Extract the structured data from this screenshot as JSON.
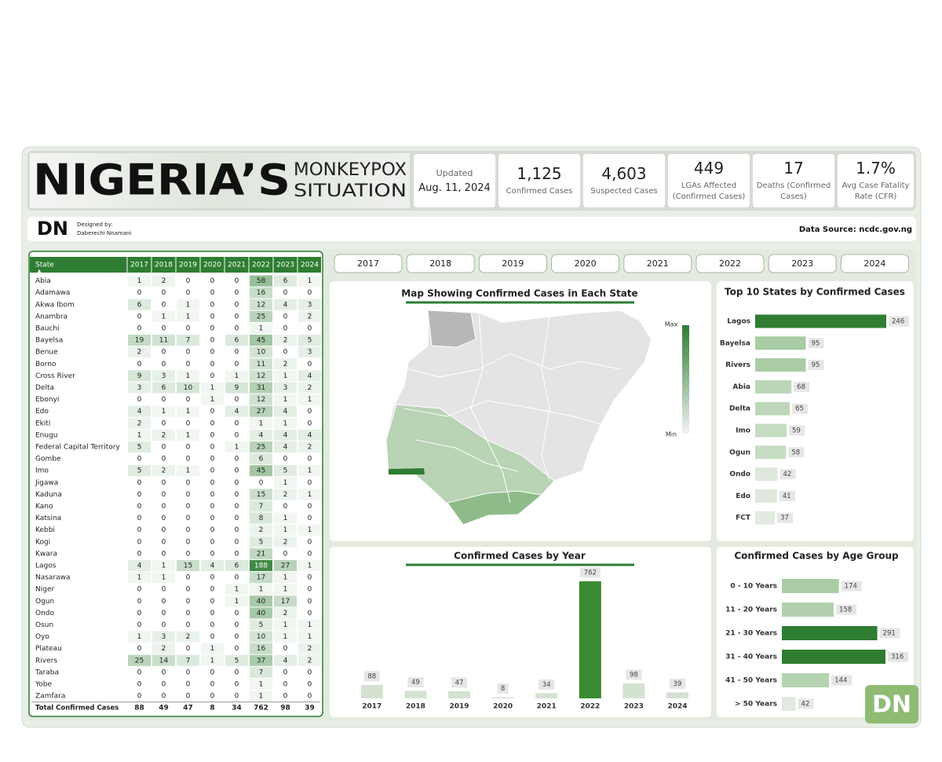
{
  "header": {
    "title": "NIGERIA’S",
    "subtitle_1": "MONKEYPOX",
    "subtitle_2": "SITUATION"
  },
  "updated": {
    "label": "Updated",
    "date": "Aug. 11, 2024"
  },
  "kpis": [
    {
      "value": "1,125",
      "label": "Confirmed Cases"
    },
    {
      "value": "4,603",
      "label": "Suspected Cases"
    },
    {
      "value": "449",
      "label": "LGAs Affected (Confirmed Cases)"
    },
    {
      "value": "17",
      "label": "Deaths (Confirmed Cases)"
    },
    {
      "value": "1.7%",
      "label": "Avg Case Fatality Rate (CFR)"
    }
  ],
  "credit": {
    "logo": "DN",
    "designed_by": "Designed by:",
    "designer": "Daberechi Nnamani",
    "source": "Data Source: ncdc.gov.ng"
  },
  "table": {
    "columns": [
      "State",
      "2017",
      "2018",
      "2019",
      "2020",
      "2021",
      "2022",
      "2023",
      "2024"
    ],
    "rows": [
      [
        "Abia",
        1,
        2,
        0,
        0,
        0,
        58,
        6,
        1
      ],
      [
        "Adamawa",
        0,
        0,
        0,
        0,
        0,
        16,
        0,
        0
      ],
      [
        "Akwa Ibom",
        6,
        0,
        1,
        0,
        0,
        12,
        4,
        3
      ],
      [
        "Anambra",
        0,
        1,
        1,
        0,
        0,
        25,
        0,
        2
      ],
      [
        "Bauchi",
        0,
        0,
        0,
        0,
        0,
        1,
        0,
        0
      ],
      [
        "Bayelsa",
        19,
        11,
        7,
        0,
        6,
        45,
        2,
        5
      ],
      [
        "Benue",
        2,
        0,
        0,
        0,
        0,
        10,
        0,
        3
      ],
      [
        "Borno",
        0,
        0,
        0,
        0,
        0,
        11,
        2,
        0
      ],
      [
        "Cross River",
        9,
        3,
        1,
        0,
        1,
        12,
        1,
        4
      ],
      [
        "Delta",
        3,
        6,
        10,
        1,
        9,
        31,
        3,
        2
      ],
      [
        "Ebonyi",
        0,
        0,
        0,
        1,
        0,
        12,
        1,
        1
      ],
      [
        "Edo",
        4,
        1,
        1,
        0,
        4,
        27,
        4,
        0
      ],
      [
        "Ekiti",
        2,
        0,
        0,
        0,
        0,
        1,
        1,
        0
      ],
      [
        "Enugu",
        1,
        2,
        1,
        0,
        0,
        4,
        4,
        4
      ],
      [
        "Federal Capital Territory",
        5,
        0,
        0,
        0,
        1,
        25,
        4,
        2
      ],
      [
        "Gombe",
        0,
        0,
        0,
        0,
        0,
        6,
        0,
        0
      ],
      [
        "Imo",
        5,
        2,
        1,
        0,
        0,
        45,
        5,
        1
      ],
      [
        "Jigawa",
        0,
        0,
        0,
        0,
        0,
        0,
        1,
        0
      ],
      [
        "Kaduna",
        0,
        0,
        0,
        0,
        0,
        15,
        2,
        1
      ],
      [
        "Kano",
        0,
        0,
        0,
        0,
        0,
        7,
        0,
        0
      ],
      [
        "Katsina",
        0,
        0,
        0,
        0,
        0,
        8,
        1,
        0
      ],
      [
        "Kebbi",
        0,
        0,
        0,
        0,
        0,
        2,
        1,
        1
      ],
      [
        "Kogi",
        0,
        0,
        0,
        0,
        0,
        5,
        2,
        0
      ],
      [
        "Kwara",
        0,
        0,
        0,
        0,
        0,
        21,
        0,
        0
      ],
      [
        "Lagos",
        4,
        1,
        15,
        4,
        6,
        188,
        27,
        1
      ],
      [
        "Nasarawa",
        1,
        1,
        0,
        0,
        0,
        17,
        1,
        0
      ],
      [
        "Niger",
        0,
        0,
        0,
        0,
        1,
        1,
        1,
        0
      ],
      [
        "Ogun",
        0,
        0,
        0,
        0,
        1,
        40,
        17,
        0
      ],
      [
        "Ondo",
        0,
        0,
        0,
        0,
        0,
        40,
        2,
        0
      ],
      [
        "Osun",
        0,
        0,
        0,
        0,
        0,
        5,
        1,
        1
      ],
      [
        "Oyo",
        1,
        3,
        2,
        0,
        0,
        10,
        1,
        1
      ],
      [
        "Plateau",
        0,
        2,
        0,
        1,
        0,
        16,
        0,
        2
      ],
      [
        "Rivers",
        25,
        14,
        7,
        1,
        5,
        37,
        4,
        2
      ],
      [
        "Taraba",
        0,
        0,
        0,
        0,
        0,
        7,
        0,
        0
      ],
      [
        "Yobe",
        0,
        0,
        0,
        0,
        0,
        1,
        0,
        0
      ],
      [
        "Zamfara",
        0,
        0,
        0,
        0,
        0,
        1,
        0,
        0
      ]
    ],
    "total": [
      "Total Confirmed Cases",
      88,
      49,
      47,
      8,
      34,
      762,
      98,
      39
    ]
  },
  "year_filters": [
    "2017",
    "2018",
    "2019",
    "2020",
    "2021",
    "2022",
    "2023",
    "2024"
  ],
  "map": {
    "title": "Map Showing Confirmed Cases in Each State",
    "legend_max": "Max",
    "legend_min": "Min"
  },
  "chart_data": [
    {
      "type": "hbar",
      "title": "Top 10 States by Confirmed Cases",
      "categories": [
        "Lagos",
        "Bayelsa",
        "Rivers",
        "Abia",
        "Delta",
        "Imo",
        "Ogun",
        "Ondo",
        "Edo",
        "FCT"
      ],
      "values": [
        246,
        95,
        95,
        68,
        65,
        59,
        58,
        42,
        41,
        37
      ],
      "colors": [
        "#2e7d32",
        "#a9cca5",
        "#a9cca5",
        "#bcd6b8",
        "#bed7ba",
        "#c6dcc2",
        "#c7ddc3",
        "#dfe8dd",
        "#e0e8de",
        "#e3eae1"
      ]
    },
    {
      "type": "bar",
      "title": "Confirmed Cases by Year",
      "categories": [
        "2017",
        "2018",
        "2019",
        "2020",
        "2021",
        "2022",
        "2023",
        "2024"
      ],
      "values": [
        88,
        49,
        47,
        8,
        34,
        762,
        98,
        39
      ],
      "colors": [
        "#d4e2d1",
        "#d4e2d1",
        "#d4e2d1",
        "#d4e2d1",
        "#d4e2d1",
        "#3a8a34",
        "#d4e2d1",
        "#d4e2d1"
      ]
    },
    {
      "type": "hbar",
      "title": "Confirmed Cases by Age Group",
      "categories": [
        "0 - 10 Years",
        "11 - 20 Years",
        "21 - 30 Years",
        "31 - 40 Years",
        "41 - 50 Years",
        "> 50 Years"
      ],
      "values": [
        174,
        158,
        291,
        316,
        144,
        42
      ],
      "colors": [
        "#a9cca5",
        "#b2d0ae",
        "#2e7d32",
        "#2e7d32",
        "#b5d2b1",
        "#e3e8e2"
      ]
    }
  ],
  "watermark": "DN"
}
